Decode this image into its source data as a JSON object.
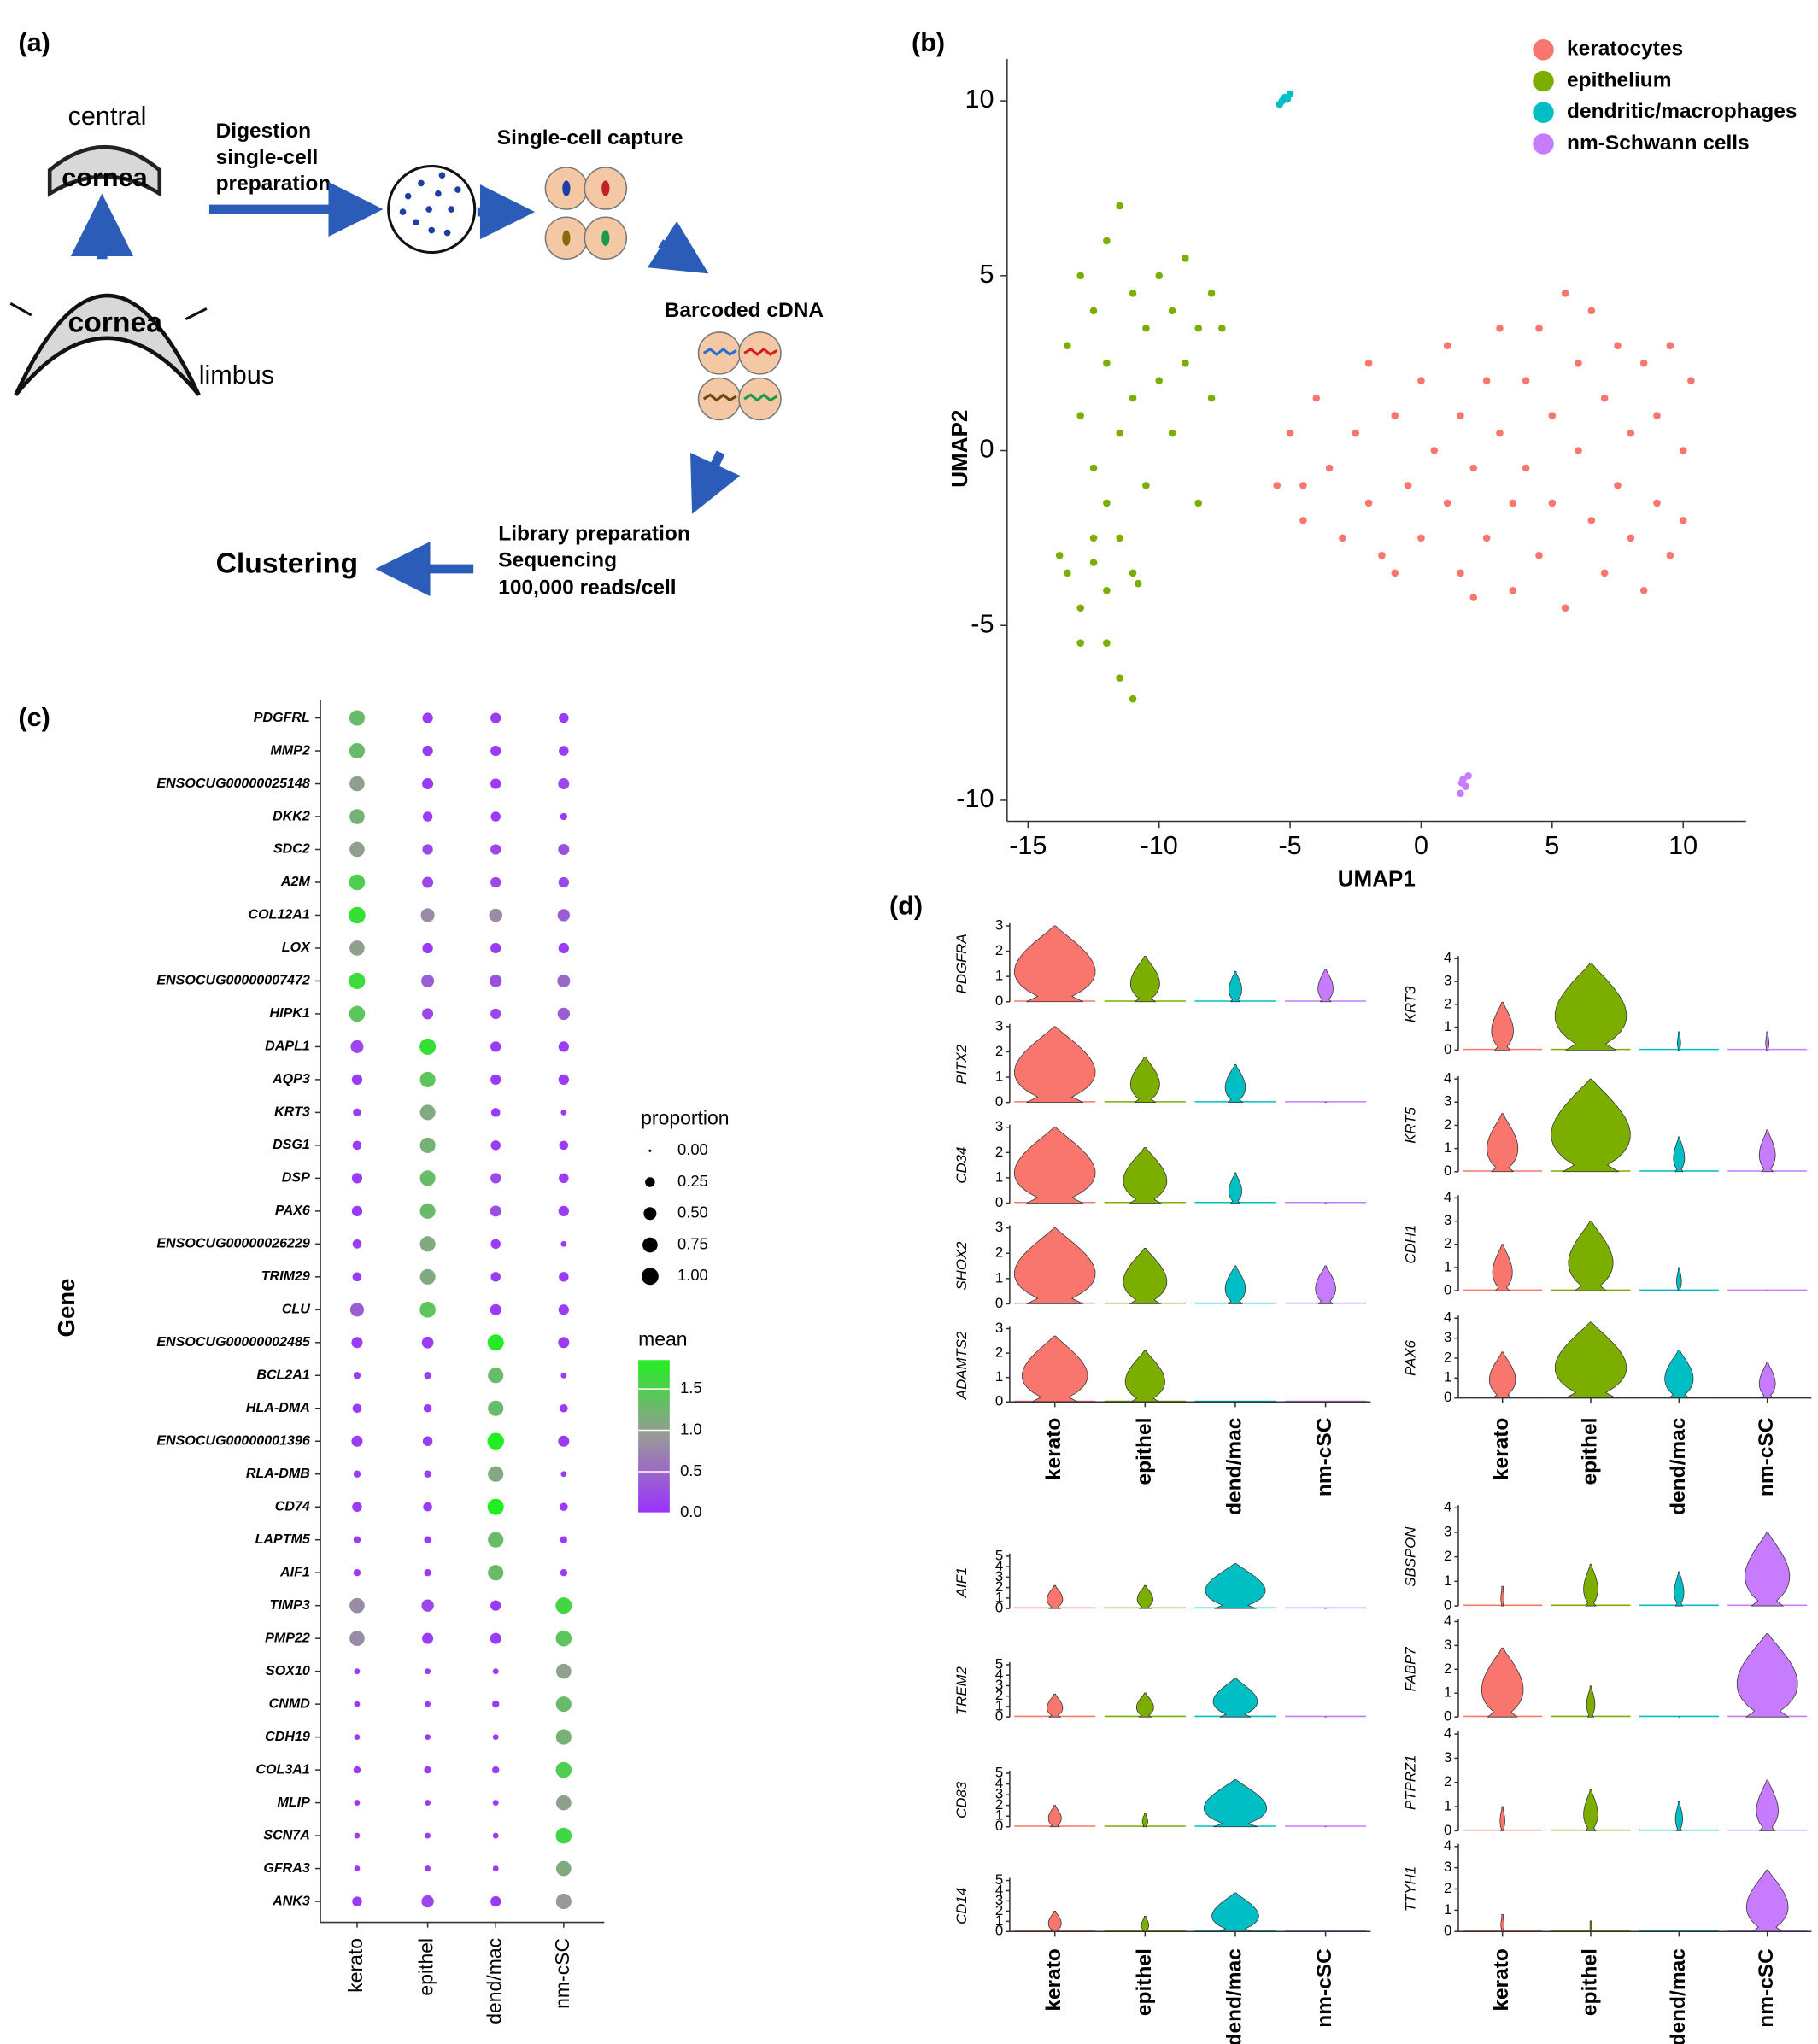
{
  "panel_a": {
    "label": "(a)",
    "central": "central",
    "cornea_top": "cornea",
    "cornea_bottom": "cornea",
    "limbus": "limbus",
    "step1": [
      "Digestion",
      "single-cell",
      "preparation"
    ],
    "step2": "Single-cell capture",
    "step3": "Barcoded cDNA",
    "step4": [
      "Library preparation",
      "Sequencing",
      "100,000 reads/cell"
    ],
    "result": "Clustering"
  },
  "chart_data": [
    {
      "type": "scatter",
      "label": "(b)",
      "xlabel": "UMAP1",
      "ylabel": "UMAP2",
      "xlim": [
        -15.8,
        12.4
      ],
      "ylim": [
        -10.6,
        11.2
      ],
      "xticks": [
        -15,
        -10,
        -5,
        0,
        5,
        10
      ],
      "yticks": [
        -10,
        -5,
        0,
        5,
        10
      ],
      "legend": "top-right",
      "series": [
        {
          "name": "keratocytes",
          "color": "#f8766d",
          "x": [
            -5.5,
            -5,
            -4.5,
            -4,
            -3.5,
            -3,
            -2.5,
            -2,
            -2,
            -1.5,
            -1,
            -0.5,
            0,
            0,
            0.5,
            1,
            1,
            1.5,
            1.5,
            2,
            2.5,
            2.5,
            3,
            3,
            3.5,
            3.5,
            4,
            4,
            4.5,
            4.5,
            5,
            5,
            5.5,
            5.5,
            6,
            6,
            6.5,
            6.5,
            7,
            7,
            7.5,
            7.5,
            8,
            8,
            8.5,
            8.5,
            9,
            9,
            9.5,
            9.5,
            10,
            10.3,
            10,
            2,
            -4.5,
            -1
          ],
          "y": [
            -1,
            0.5,
            -2,
            1.5,
            -0.5,
            -2.5,
            0.5,
            2.5,
            -1.5,
            -3,
            1,
            -1,
            2,
            -2.5,
            0,
            3,
            -1.5,
            1,
            -3.5,
            -0.5,
            2,
            -2.5,
            3.5,
            0.5,
            -1.5,
            -4,
            2,
            -0.5,
            3.5,
            -3,
            1,
            -1.5,
            4.5,
            -4.5,
            2.5,
            0,
            -2,
            4,
            1.5,
            -3.5,
            3,
            -1,
            0.5,
            -2.5,
            2.5,
            -4,
            1,
            -1.5,
            3,
            -3,
            0,
            2,
            -2,
            -4.2,
            -1,
            -3.5
          ]
        },
        {
          "name": "epithelium",
          "color": "#7cae00",
          "x": [
            -13.5,
            -13,
            -13,
            -12.5,
            -12.5,
            -12,
            -12,
            -11.5,
            -11.5,
            -11,
            -11,
            -10.5,
            -10.5,
            -10,
            -10,
            -9.5,
            -9.5,
            -9,
            -9,
            -8.5,
            -8.5,
            -8,
            -8,
            -7.6,
            -12,
            -12.5,
            -13.5,
            -13,
            -12,
            -11,
            -13,
            -12,
            -11.5,
            -11,
            -13.8,
            -11.5,
            -10.8,
            -12.5
          ],
          "y": [
            3,
            5,
            1,
            4,
            -0.5,
            6,
            2.5,
            7,
            0.5,
            4.5,
            1.5,
            3.5,
            -1,
            5,
            2,
            4,
            0.5,
            5.5,
            2.5,
            3.5,
            -1.5,
            4.5,
            1.5,
            3.5,
            -1.5,
            -2.5,
            -3.5,
            -4.5,
            -4,
            -3.5,
            -5.5,
            -5.5,
            -6.5,
            -7.1,
            -3,
            -2.5,
            -3.8,
            -3.2
          ]
        },
        {
          "name": "dendritic/macrophages",
          "color": "#00bfc4",
          "x": [
            -5.4,
            -5.2,
            -5.0,
            -5.3,
            -5.1
          ],
          "y": [
            9.9,
            10.1,
            10.2,
            10.0,
            10.05
          ]
        },
        {
          "name": "nm-Schwann cells",
          "color": "#c77cff",
          "x": [
            1.6,
            1.7,
            1.5,
            1.8,
            1.55
          ],
          "y": [
            -9.4,
            -9.6,
            -9.8,
            -9.3,
            -9.5
          ]
        }
      ]
    },
    {
      "type": "dot",
      "label": "(c)",
      "ylabel": "Gene",
      "groups": [
        "kerato",
        "epithel",
        "dend/mac",
        "nm-cSC"
      ],
      "categories": [
        "PDGFRL",
        "MMP2",
        "ENSOCUG00000025148",
        "DKK2",
        "SDC2",
        "A2M",
        "COL12A1",
        "LOX",
        "ENSOCUG00000007472",
        "HIPK1",
        "DAPL1",
        "AQP3",
        "KRT3",
        "DSG1",
        "DSP",
        "PAX6",
        "ENSOCUG00000026229",
        "TRIM29",
        "CLU",
        "ENSOCUG00000002485",
        "BCL2A1",
        "HLA-DMA",
        "ENSOCUG00000001396",
        "RLA-DMB",
        "CD74",
        "LAPTM5",
        "AIF1",
        "TIMP3",
        "PMP22",
        "SOX10",
        "CNMD",
        "CDH19",
        "COL3A1",
        "MLIP",
        "SCN7A",
        "GFRA3",
        "ANK3"
      ],
      "proportion": [
        [
          0.8,
          0.3,
          0.3,
          0.25
        ],
        [
          0.8,
          0.3,
          0.3,
          0.25
        ],
        [
          0.75,
          0.35,
          0.3,
          0.35
        ],
        [
          0.75,
          0.25,
          0.25,
          0.1
        ],
        [
          0.75,
          0.3,
          0.3,
          0.35
        ],
        [
          0.85,
          0.35,
          0.3,
          0.3
        ],
        [
          0.95,
          0.6,
          0.55,
          0.45
        ],
        [
          0.75,
          0.3,
          0.3,
          0.3
        ],
        [
          0.9,
          0.5,
          0.45,
          0.5
        ],
        [
          0.85,
          0.35,
          0.3,
          0.45
        ],
        [
          0.5,
          0.9,
          0.3,
          0.3
        ],
        [
          0.3,
          0.8,
          0.3,
          0.3
        ],
        [
          0.15,
          0.8,
          0.2,
          0.05
        ],
        [
          0.2,
          0.8,
          0.25,
          0.2
        ],
        [
          0.3,
          0.8,
          0.3,
          0.25
        ],
        [
          0.3,
          0.8,
          0.35,
          0.3
        ],
        [
          0.2,
          0.8,
          0.25,
          0.05
        ],
        [
          0.2,
          0.8,
          0.25,
          0.25
        ],
        [
          0.6,
          0.85,
          0.35,
          0.3
        ],
        [
          0.35,
          0.4,
          0.9,
          0.35
        ],
        [
          0.1,
          0.1,
          0.8,
          0.05
        ],
        [
          0.2,
          0.15,
          0.8,
          0.15
        ],
        [
          0.35,
          0.25,
          0.95,
          0.35
        ],
        [
          0.1,
          0.1,
          0.8,
          0.05
        ],
        [
          0.25,
          0.2,
          0.9,
          0.15
        ],
        [
          0.1,
          0.1,
          0.8,
          0.1
        ],
        [
          0.1,
          0.1,
          0.8,
          0.1
        ],
        [
          0.75,
          0.45,
          0.3,
          0.9
        ],
        [
          0.75,
          0.35,
          0.35,
          0.85
        ],
        [
          0.05,
          0.05,
          0.05,
          0.75
        ],
        [
          0.05,
          0.05,
          0.1,
          0.8
        ],
        [
          0.05,
          0.05,
          0.05,
          0.8
        ],
        [
          0.1,
          0.1,
          0.1,
          0.85
        ],
        [
          0.05,
          0.05,
          0.05,
          0.75
        ],
        [
          0.05,
          0.05,
          0.05,
          0.85
        ],
        [
          0.05,
          0.05,
          0.05,
          0.75
        ],
        [
          0.25,
          0.45,
          0.3,
          0.8
        ]
      ],
      "mean": [
        [
          1.3,
          0.1,
          0.1,
          0.1
        ],
        [
          1.3,
          0.1,
          0.1,
          0.1
        ],
        [
          1.0,
          0.1,
          0.1,
          0.2
        ],
        [
          1.2,
          0.1,
          0.1,
          0.1
        ],
        [
          1.0,
          0.2,
          0.2,
          0.3
        ],
        [
          1.5,
          0.2,
          0.2,
          0.2
        ],
        [
          1.7,
          0.8,
          0.8,
          0.4
        ],
        [
          1.0,
          0.1,
          0.1,
          0.1
        ],
        [
          1.65,
          0.4,
          0.3,
          0.5
        ],
        [
          1.4,
          0.2,
          0.2,
          0.4
        ],
        [
          0.2,
          1.7,
          0.1,
          0.1
        ],
        [
          0.1,
          1.4,
          0.1,
          0.1
        ],
        [
          0.1,
          1.1,
          0.1,
          0.1
        ],
        [
          0.1,
          1.2,
          0.1,
          0.1
        ],
        [
          0.1,
          1.3,
          0.2,
          0.1
        ],
        [
          0.1,
          1.3,
          0.3,
          0.1
        ],
        [
          0.1,
          1.1,
          0.1,
          0.1
        ],
        [
          0.1,
          1.1,
          0.1,
          0.1
        ],
        [
          0.4,
          1.4,
          0.1,
          0.1
        ],
        [
          0.1,
          0.1,
          1.8,
          0.1
        ],
        [
          0.1,
          0.1,
          1.3,
          0.1
        ],
        [
          0.1,
          0.1,
          1.3,
          0.1
        ],
        [
          0.1,
          0.1,
          1.9,
          0.1
        ],
        [
          0.1,
          0.1,
          1.1,
          0.1
        ],
        [
          0.1,
          0.1,
          1.85,
          0.1
        ],
        [
          0.1,
          0.1,
          1.3,
          0.1
        ],
        [
          0.1,
          0.1,
          1.3,
          0.1
        ],
        [
          0.8,
          0.2,
          0.1,
          1.6
        ],
        [
          0.8,
          0.1,
          0.1,
          1.4
        ],
        [
          0.1,
          0.1,
          0.1,
          1.0
        ],
        [
          0.1,
          0.1,
          0.1,
          1.3
        ],
        [
          0.1,
          0.1,
          0.1,
          1.2
        ],
        [
          0.1,
          0.1,
          0.1,
          1.5
        ],
        [
          0.1,
          0.1,
          0.1,
          1.0
        ],
        [
          0.1,
          0.1,
          0.1,
          1.6
        ],
        [
          0.1,
          0.1,
          0.1,
          1.1
        ],
        [
          0.1,
          0.2,
          0.1,
          0.9
        ]
      ],
      "size_legend_title": "proportion",
      "size_ticks": [
        {
          "value": 0,
          "label": "0.00"
        },
        0.25,
        {
          "value": 0.5,
          "label": "0.50"
        },
        0.75,
        {
          "value": 1,
          "label": "1.00"
        }
      ],
      "color_legend_title": "mean",
      "color_lim": [
        0,
        1.85
      ],
      "color_ticks": [
        {
          "value": 0,
          "label": "0.0"
        },
        0.5,
        {
          "value": 1,
          "label": "1.0"
        },
        1.5
      ],
      "colors": [
        "#9b30ff",
        "#999999",
        "#22ee22"
      ]
    },
    {
      "type": "violin",
      "label": "(d)",
      "categories": [
        "kerato",
        "epithel",
        "dend/mac",
        "nm-cSC"
      ],
      "colors": [
        "#f8766d",
        "#7cae00",
        "#00bfc4",
        "#c77cff"
      ],
      "panels": [
        {
          "gene": "PDGFRA",
          "ylim": [
            0,
            3
          ],
          "yticks": [
            0,
            1,
            2,
            3
          ],
          "values": [
            3,
            1.8,
            1.2,
            1.3
          ]
        },
        {
          "gene": "PITX2",
          "ylim": [
            0,
            3
          ],
          "yticks": [
            0,
            1,
            2,
            3
          ],
          "values": [
            3,
            1.8,
            1.5,
            0
          ]
        },
        {
          "gene": "CD34",
          "ylim": [
            0,
            3
          ],
          "yticks": [
            0,
            1,
            2,
            3
          ],
          "values": [
            3,
            2.2,
            1.2,
            0
          ]
        },
        {
          "gene": "SHOX2",
          "ylim": [
            0,
            3
          ],
          "yticks": [
            0,
            1,
            2,
            3
          ],
          "values": [
            3,
            2.2,
            1.5,
            1.5
          ]
        },
        {
          "gene": "ADAMTS2",
          "ylim": [
            0,
            3
          ],
          "yticks": [
            0,
            1,
            2,
            3
          ],
          "values": [
            2.7,
            2.1,
            0,
            0
          ]
        },
        {
          "gene": "KRT3",
          "ylim": [
            0,
            4
          ],
          "yticks": [
            0,
            1,
            2,
            3,
            4
          ],
          "values": [
            2.1,
            3.8,
            0.8,
            0.8
          ]
        },
        {
          "gene": "KRT5",
          "ylim": [
            0,
            4
          ],
          "yticks": [
            0,
            1,
            2,
            3,
            4
          ],
          "values": [
            2.5,
            4,
            1.5,
            1.8
          ]
        },
        {
          "gene": "CDH1",
          "ylim": [
            0,
            4
          ],
          "yticks": [
            0,
            1,
            2,
            3,
            4
          ],
          "values": [
            2,
            3,
            1,
            0
          ]
        },
        {
          "gene": "PAX6",
          "ylim": [
            0,
            4
          ],
          "yticks": [
            0,
            1,
            2,
            3,
            4
          ],
          "values": [
            2.3,
            3.8,
            2.4,
            1.8
          ]
        },
        {
          "gene": "AIF1",
          "ylim": [
            0,
            5
          ],
          "yticks": [
            0,
            1,
            2,
            3,
            4,
            5
          ],
          "values": [
            2.2,
            2.2,
            4.3,
            0
          ]
        },
        {
          "gene": "TREM2",
          "ylim": [
            0,
            5
          ],
          "yticks": [
            0,
            1,
            2,
            3,
            4,
            5
          ],
          "values": [
            2.2,
            2.3,
            3.7,
            0
          ]
        },
        {
          "gene": "CD83",
          "ylim": [
            0,
            5
          ],
          "yticks": [
            0,
            1,
            2,
            3,
            4,
            5
          ],
          "values": [
            2,
            1.3,
            4.4,
            0
          ]
        },
        {
          "gene": "CD14",
          "ylim": [
            0,
            5
          ],
          "yticks": [
            0,
            1,
            2,
            3,
            4,
            5
          ],
          "values": [
            2,
            1.5,
            3.8,
            0
          ]
        },
        {
          "gene": "SBSPON",
          "ylim": [
            0,
            4
          ],
          "yticks": [
            0,
            1,
            2,
            3,
            4
          ],
          "values": [
            0.8,
            1.7,
            1.4,
            3
          ]
        },
        {
          "gene": "FABP7",
          "ylim": [
            0,
            4
          ],
          "yticks": [
            0,
            1,
            2,
            3,
            4
          ],
          "values": [
            2.9,
            1.3,
            0,
            3.5
          ]
        },
        {
          "gene": "PTPRZ1",
          "ylim": [
            0,
            4
          ],
          "yticks": [
            0,
            1,
            2,
            3,
            4
          ],
          "values": [
            1,
            1.7,
            1.2,
            2.1
          ]
        },
        {
          "gene": "TTYH1",
          "ylim": [
            0,
            4
          ],
          "yticks": [
            0,
            1,
            2,
            3,
            4
          ],
          "values": [
            0.8,
            0.5,
            0,
            2.9
          ]
        }
      ]
    }
  ]
}
